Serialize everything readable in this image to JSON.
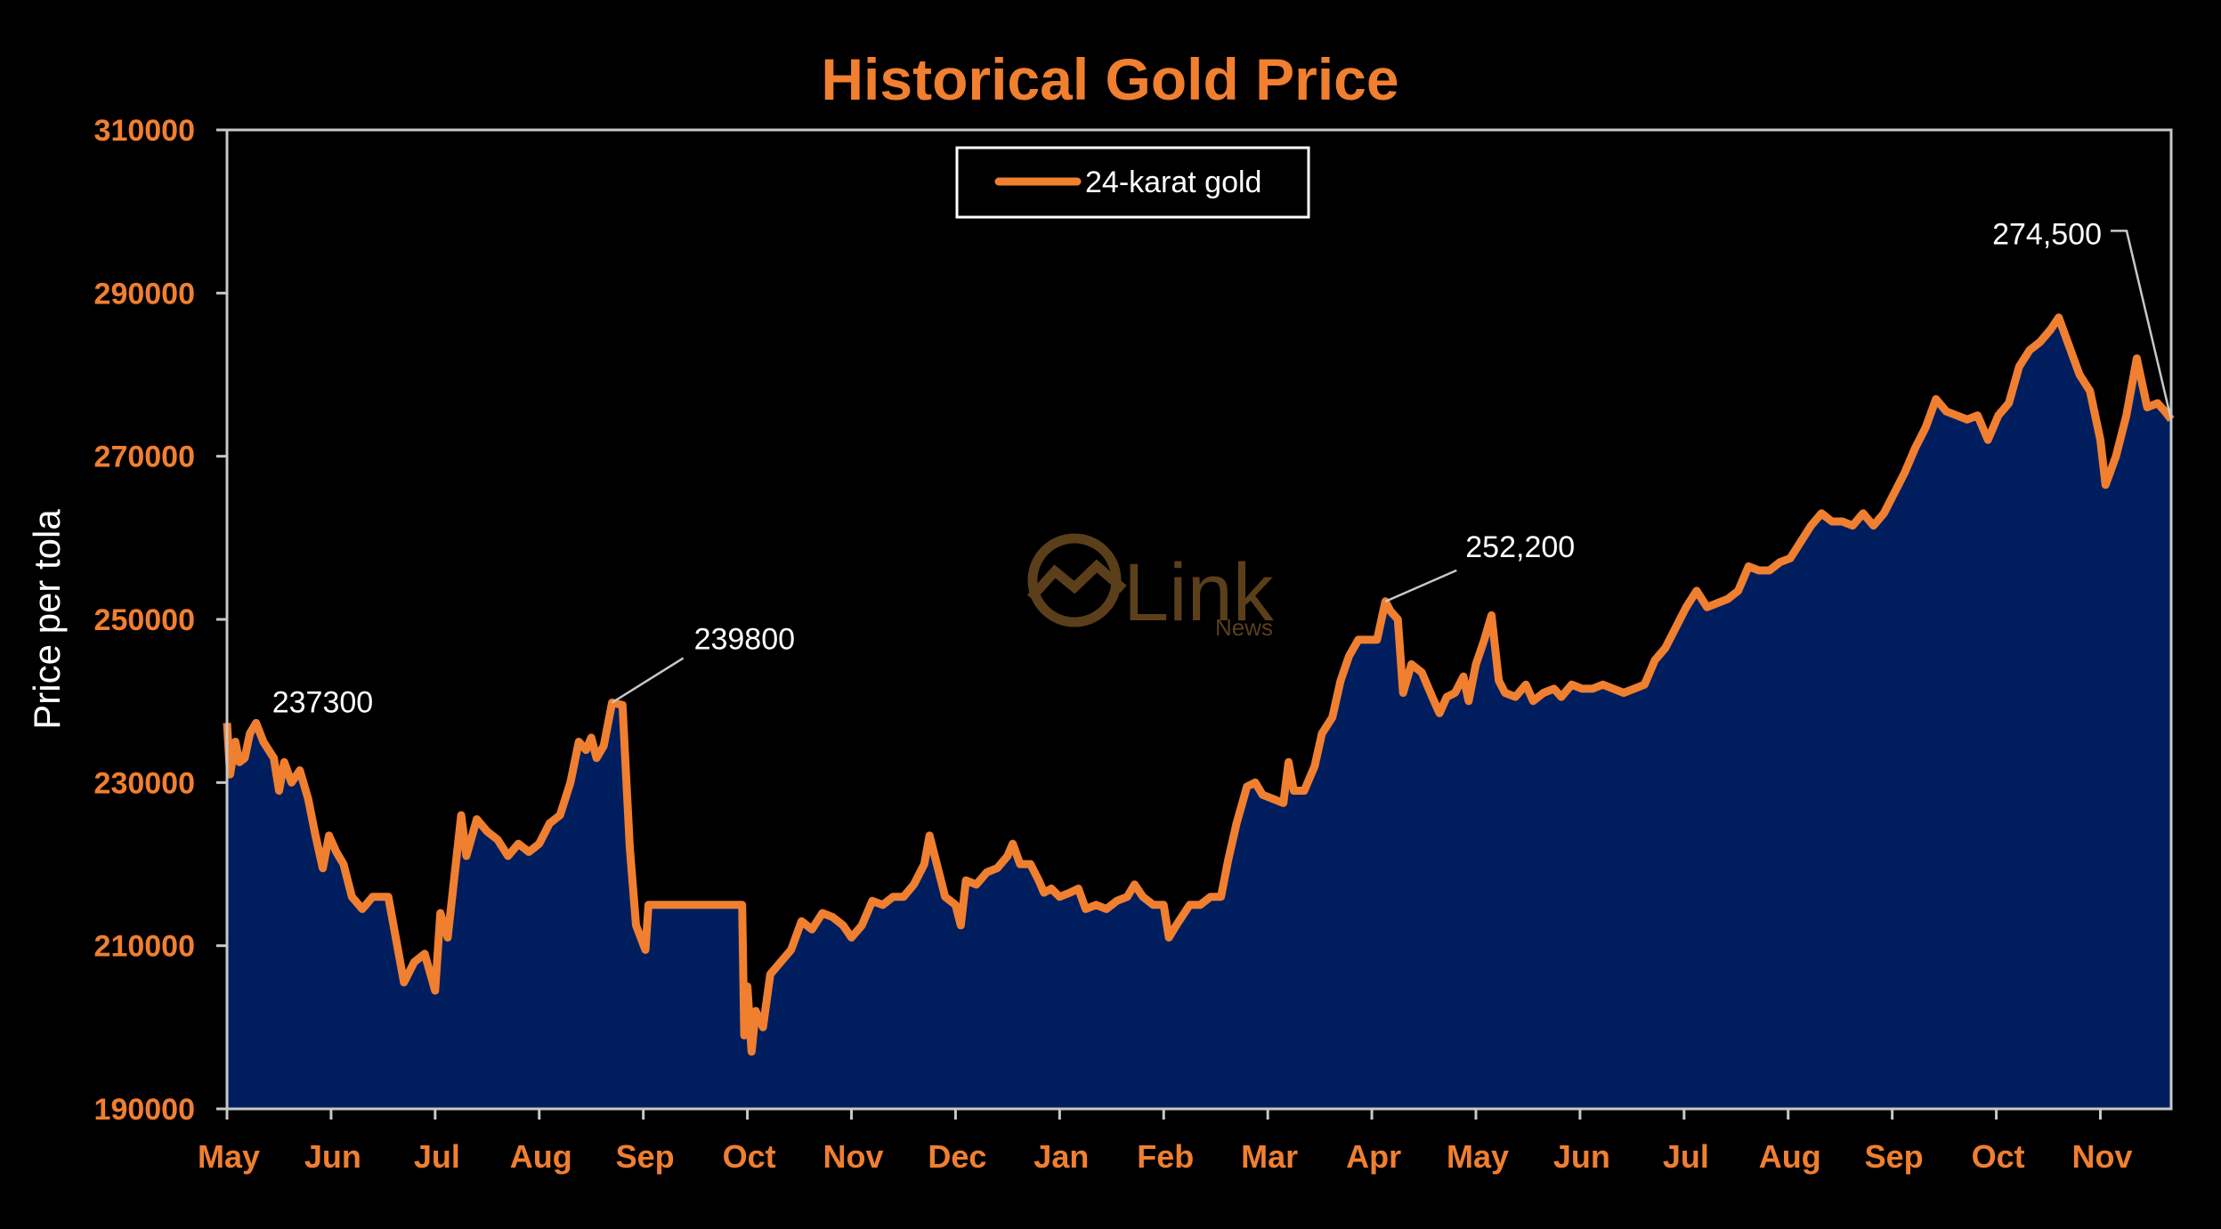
{
  "chart_data": {
    "type": "area",
    "title": "Historical Gold Price",
    "ylabel": "Price per tola",
    "xlabel": "",
    "ylim": [
      190000,
      310000
    ],
    "yticks": [
      "190000",
      "210000",
      "230000",
      "250000",
      "270000",
      "290000",
      "310000"
    ],
    "months": [
      "May",
      "Jun",
      "Jul",
      "Aug",
      "Sep",
      "Oct",
      "Nov",
      "Dec",
      "Jan",
      "Feb",
      "Mar",
      "Apr",
      "May",
      "Jun",
      "Jul",
      "Aug",
      "Sep",
      "Oct",
      "Nov"
    ],
    "legend": {
      "label": "24-karat gold",
      "position": "top-center"
    },
    "colors": {
      "line": "#f07f30",
      "fill": "#001e5e",
      "axis": "#c8c8c8",
      "tick_text": "#f07f30"
    },
    "series": [
      {
        "name": "24-karat gold",
        "points": [
          [
            0.0,
            237300
          ],
          [
            0.03,
            231000
          ],
          [
            0.08,
            235000
          ],
          [
            0.12,
            232500
          ],
          [
            0.17,
            233000
          ],
          [
            0.22,
            236000
          ],
          [
            0.28,
            237300
          ],
          [
            0.35,
            235000
          ],
          [
            0.45,
            233000
          ],
          [
            0.5,
            229000
          ],
          [
            0.55,
            232500
          ],
          [
            0.62,
            230000
          ],
          [
            0.7,
            231500
          ],
          [
            0.78,
            228000
          ],
          [
            0.85,
            223500
          ],
          [
            0.92,
            219500
          ],
          [
            0.98,
            223500
          ],
          [
            1.05,
            221500
          ],
          [
            1.12,
            220000
          ],
          [
            1.2,
            216000
          ],
          [
            1.3,
            214500
          ],
          [
            1.4,
            216000
          ],
          [
            1.55,
            216000
          ],
          [
            1.7,
            205500
          ],
          [
            1.8,
            208000
          ],
          [
            1.9,
            209000
          ],
          [
            2.0,
            204500
          ],
          [
            2.05,
            214000
          ],
          [
            2.12,
            211000
          ],
          [
            2.25,
            226000
          ],
          [
            2.3,
            221000
          ],
          [
            2.4,
            225500
          ],
          [
            2.5,
            224000
          ],
          [
            2.6,
            223000
          ],
          [
            2.7,
            221000
          ],
          [
            2.8,
            222500
          ],
          [
            2.9,
            221500
          ],
          [
            3.0,
            222500
          ],
          [
            3.1,
            225000
          ],
          [
            3.2,
            226000
          ],
          [
            3.3,
            230000
          ],
          [
            3.38,
            235000
          ],
          [
            3.45,
            234000
          ],
          [
            3.5,
            235500
          ],
          [
            3.55,
            233000
          ],
          [
            3.62,
            234500
          ],
          [
            3.7,
            239800
          ],
          [
            3.8,
            239500
          ],
          [
            3.87,
            222000
          ],
          [
            3.93,
            212500
          ],
          [
            4.02,
            209500
          ],
          [
            4.05,
            215000
          ],
          [
            4.5,
            215000
          ],
          [
            4.95,
            215000
          ],
          [
            4.97,
            199000
          ],
          [
            5.0,
            205000
          ],
          [
            5.04,
            197000
          ],
          [
            5.08,
            202000
          ],
          [
            5.15,
            200000
          ],
          [
            5.22,
            206500
          ],
          [
            5.32,
            208000
          ],
          [
            5.42,
            209500
          ],
          [
            5.52,
            213000
          ],
          [
            5.62,
            212000
          ],
          [
            5.72,
            214000
          ],
          [
            5.82,
            213500
          ],
          [
            5.92,
            212500
          ],
          [
            6.0,
            211000
          ],
          [
            6.1,
            212500
          ],
          [
            6.2,
            215500
          ],
          [
            6.3,
            215000
          ],
          [
            6.4,
            216000
          ],
          [
            6.5,
            216000
          ],
          [
            6.6,
            217500
          ],
          [
            6.7,
            220000
          ],
          [
            6.75,
            223500
          ],
          [
            6.82,
            220000
          ],
          [
            6.9,
            216000
          ],
          [
            7.0,
            215000
          ],
          [
            7.05,
            212500
          ],
          [
            7.1,
            218000
          ],
          [
            7.2,
            217500
          ],
          [
            7.3,
            219000
          ],
          [
            7.4,
            219500
          ],
          [
            7.5,
            221000
          ],
          [
            7.55,
            222500
          ],
          [
            7.62,
            220000
          ],
          [
            7.72,
            220000
          ],
          [
            7.8,
            218000
          ],
          [
            7.85,
            216500
          ],
          [
            7.92,
            217000
          ],
          [
            8.0,
            216000
          ],
          [
            8.1,
            216500
          ],
          [
            8.18,
            217000
          ],
          [
            8.25,
            214500
          ],
          [
            8.35,
            215000
          ],
          [
            8.45,
            214500
          ],
          [
            8.55,
            215500
          ],
          [
            8.65,
            216000
          ],
          [
            8.72,
            217500
          ],
          [
            8.8,
            216000
          ],
          [
            8.9,
            215000
          ],
          [
            9.0,
            215000
          ],
          [
            9.05,
            211000
          ],
          [
            9.12,
            212500
          ],
          [
            9.25,
            215000
          ],
          [
            9.35,
            215000
          ],
          [
            9.45,
            216000
          ],
          [
            9.55,
            216000
          ],
          [
            9.62,
            220500
          ],
          [
            9.7,
            225000
          ],
          [
            9.8,
            229500
          ],
          [
            9.88,
            230000
          ],
          [
            9.95,
            228500
          ],
          [
            10.05,
            228000
          ],
          [
            10.15,
            227500
          ],
          [
            10.2,
            232500
          ],
          [
            10.25,
            229000
          ],
          [
            10.35,
            229000
          ],
          [
            10.45,
            232000
          ],
          [
            10.52,
            236000
          ],
          [
            10.62,
            238000
          ],
          [
            10.7,
            242500
          ],
          [
            10.78,
            245500
          ],
          [
            10.87,
            247500
          ],
          [
            10.95,
            247500
          ],
          [
            11.05,
            247500
          ],
          [
            11.13,
            252200
          ],
          [
            11.18,
            251000
          ],
          [
            11.25,
            250000
          ],
          [
            11.3,
            241000
          ],
          [
            11.38,
            244500
          ],
          [
            11.48,
            243500
          ],
          [
            11.58,
            240500
          ],
          [
            11.65,
            238500
          ],
          [
            11.72,
            240500
          ],
          [
            11.8,
            241000
          ],
          [
            11.88,
            243000
          ],
          [
            11.93,
            240000
          ],
          [
            12.0,
            244500
          ],
          [
            12.08,
            247500
          ],
          [
            12.15,
            250500
          ],
          [
            12.22,
            242500
          ],
          [
            12.28,
            241000
          ],
          [
            12.38,
            240500
          ],
          [
            12.48,
            242000
          ],
          [
            12.55,
            240000
          ],
          [
            12.65,
            241000
          ],
          [
            12.75,
            241500
          ],
          [
            12.82,
            240500
          ],
          [
            12.92,
            242000
          ],
          [
            13.02,
            241500
          ],
          [
            13.12,
            241500
          ],
          [
            13.22,
            242000
          ],
          [
            13.32,
            241500
          ],
          [
            13.42,
            241000
          ],
          [
            13.52,
            241500
          ],
          [
            13.62,
            242000
          ],
          [
            13.72,
            245000
          ],
          [
            13.82,
            246500
          ],
          [
            13.92,
            249000
          ],
          [
            14.02,
            251500
          ],
          [
            14.12,
            253500
          ],
          [
            14.22,
            251500
          ],
          [
            14.32,
            252000
          ],
          [
            14.42,
            252500
          ],
          [
            14.52,
            253500
          ],
          [
            14.62,
            256500
          ],
          [
            14.72,
            256000
          ],
          [
            14.82,
            256000
          ],
          [
            14.92,
            257000
          ],
          [
            15.02,
            257500
          ],
          [
            15.12,
            259500
          ],
          [
            15.22,
            261500
          ],
          [
            15.32,
            263000
          ],
          [
            15.42,
            262000
          ],
          [
            15.52,
            262000
          ],
          [
            15.62,
            261500
          ],
          [
            15.72,
            263000
          ],
          [
            15.82,
            261500
          ],
          [
            15.92,
            263000
          ],
          [
            16.02,
            265500
          ],
          [
            16.12,
            268000
          ],
          [
            16.22,
            271000
          ],
          [
            16.32,
            273500
          ],
          [
            16.42,
            277000
          ],
          [
            16.52,
            275500
          ],
          [
            16.62,
            275000
          ],
          [
            16.72,
            274500
          ],
          [
            16.82,
            275000
          ],
          [
            16.92,
            272000
          ],
          [
            17.02,
            275000
          ],
          [
            17.12,
            276500
          ],
          [
            17.22,
            281000
          ],
          [
            17.32,
            283000
          ],
          [
            17.42,
            284000
          ],
          [
            17.52,
            285500
          ],
          [
            17.6,
            287000
          ],
          [
            17.7,
            283500
          ],
          [
            17.8,
            280000
          ],
          [
            17.9,
            278000
          ],
          [
            18.0,
            272000
          ],
          [
            18.05,
            266500
          ],
          [
            18.15,
            270000
          ],
          [
            18.25,
            275000
          ],
          [
            18.35,
            282000
          ],
          [
            18.45,
            276000
          ],
          [
            18.55,
            276500
          ],
          [
            18.62,
            275500
          ],
          [
            18.68,
            274500
          ]
        ]
      }
    ],
    "annotations": [
      {
        "text": "237300",
        "x": 0.28,
        "y": 237300
      },
      {
        "text": "239800",
        "x": 3.7,
        "y": 239800
      },
      {
        "text": "252,200",
        "x": 11.13,
        "y": 252200
      },
      {
        "text": "274,500",
        "x": 18.68,
        "y": 274500
      }
    ],
    "watermark": {
      "brand": "Link",
      "sub": "News"
    }
  }
}
